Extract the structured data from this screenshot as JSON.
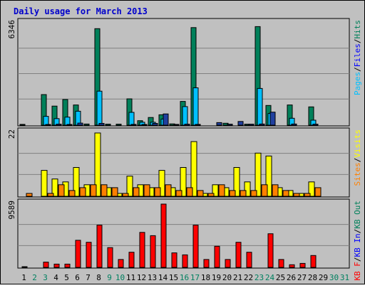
{
  "chart_data": {
    "type": "bar",
    "title": "Daily usage for March 2013",
    "categories": [
      "1",
      "2",
      "3",
      "4",
      "5",
      "6",
      "7",
      "8",
      "9",
      "10",
      "11",
      "12",
      "13",
      "14",
      "15",
      "16",
      "17",
      "18",
      "19",
      "20",
      "21",
      "22",
      "23",
      "24",
      "25",
      "26",
      "27",
      "28",
      "29",
      "30",
      "31"
    ],
    "weekend_days": [
      2,
      3,
      9,
      10,
      16,
      17,
      23,
      24,
      30,
      31
    ],
    "colors": {
      "background": "#c0c0c0",
      "title": "#0000cc",
      "hits": "#00805a",
      "files": "#00c0ff",
      "pages": "#2040a0",
      "visits": "#ffff00",
      "sites": "#ff8000",
      "kb_in": "#0000ff",
      "kb_out": "#00805a",
      "kb_f": "#ff0000",
      "weekday_label": "#000000",
      "weekend_label": "#008060"
    },
    "panels": [
      {
        "max_label": "6346",
        "ymax": 6346,
        "legend": [
          {
            "label": "Pages",
            "color": "#00c0ff"
          },
          {
            "label": "/",
            "color": "#000000"
          },
          {
            "label": "Files",
            "color": "#0000ff"
          },
          {
            "label": "/",
            "color": "#000000"
          },
          {
            "label": "Hits",
            "color": "#00805a"
          }
        ],
        "series": [
          {
            "key": "hits",
            "values": [
              50,
              0,
              1910,
              1190,
              1600,
              1260,
              70,
              6020,
              60,
              60,
              1640,
              280,
              480,
              650,
              80,
              1480,
              6090,
              0,
              0,
              120,
              0,
              60,
              6150,
              1230,
              0,
              1260,
              0,
              1140,
              0,
              0,
              0
            ]
          },
          {
            "key": "files",
            "values": [
              0,
              0,
              550,
              410,
              500,
              870,
              0,
              2120,
              0,
              0,
              800,
              180,
              180,
              380,
              0,
              1160,
              2330,
              0,
              0,
              0,
              0,
              0,
              2290,
              730,
              0,
              430,
              0,
              310,
              0,
              0,
              0
            ]
          },
          {
            "key": "pages",
            "values": [
              0,
              0,
              30,
              60,
              40,
              130,
              0,
              110,
              0,
              0,
              50,
              30,
              110,
              700,
              50,
              60,
              50,
              0,
              160,
              60,
              230,
              60,
              70,
              810,
              0,
              70,
              0,
              60,
              0,
              0,
              0
            ]
          }
        ]
      },
      {
        "max_label": "22",
        "ymax": 22,
        "legend": [
          {
            "label": "Sites",
            "color": "#ff8000"
          },
          {
            "label": "/",
            "color": "#000000"
          },
          {
            "label": "Visits",
            "color": "#ffff00"
          }
        ],
        "series": [
          {
            "key": "visits",
            "values": [
              0,
              0,
              9,
              6,
              5,
              10,
              4,
              22,
              3,
              1,
              7,
              4,
              3,
              9,
              3,
              10,
              19,
              1,
              4,
              3,
              10,
              5,
              15,
              14,
              3,
              2,
              1,
              5,
              0,
              0,
              0
            ]
          },
          {
            "key": "sites",
            "values": [
              1,
              0,
              1,
              4,
              2,
              3,
              4,
              4,
              3,
              1,
              3,
              4,
              3,
              4,
              2,
              3,
              2,
              1,
              4,
              2,
              2,
              2,
              4,
              4,
              2,
              1,
              1,
              3,
              0,
              0,
              0
            ]
          }
        ]
      },
      {
        "max_label": "9589",
        "ymax": 9589,
        "legend": [
          {
            "label": "KB F",
            "color": "#ff0000"
          },
          {
            "label": "/",
            "color": "#000000"
          },
          {
            "label": "KB In",
            "color": "#0000ff"
          },
          {
            "label": "/",
            "color": "#000000"
          },
          {
            "label": "KB Out",
            "color": "#00805a"
          }
        ],
        "series": [
          {
            "key": "kb_f",
            "values": [
              100,
              0,
              800,
              500,
              500,
              4100,
              3800,
              6400,
              3000,
              1200,
              2300,
              5300,
              4800,
              9589,
              2200,
              1900,
              6400,
              1200,
              3200,
              1200,
              3800,
              2300,
              0,
              5100,
              1200,
              400,
              600,
              1800,
              0,
              0,
              0
            ]
          }
        ]
      }
    ]
  }
}
